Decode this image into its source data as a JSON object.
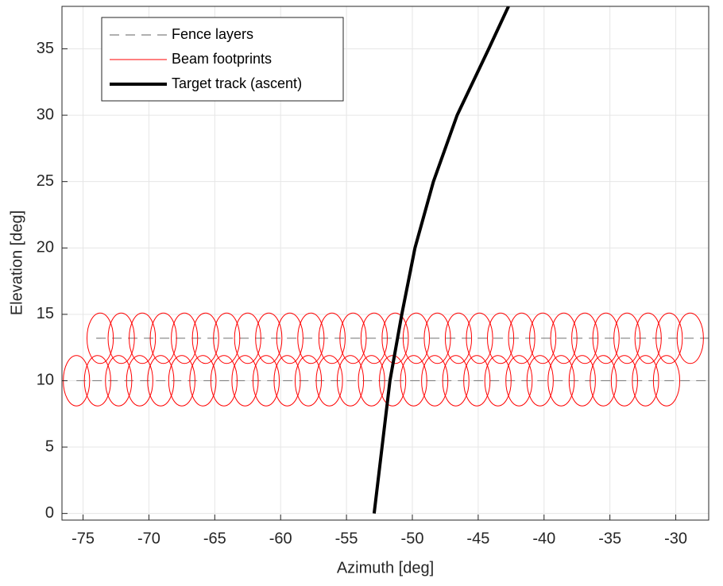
{
  "chart_data": {
    "type": "line",
    "xlabel": "Azimuth [deg]",
    "ylabel": "Elevation [deg]",
    "xlim": [
      -76.6,
      -27.5
    ],
    "ylim": [
      -0.5,
      38.2
    ],
    "xticks": [
      -75,
      -70,
      -65,
      -60,
      -55,
      -50,
      -45,
      -40,
      -35,
      -30
    ],
    "yticks": [
      0,
      5,
      10,
      15,
      20,
      25,
      30,
      35
    ],
    "grid": true,
    "legend": "upper left",
    "series": [
      {
        "name": "Fence layers",
        "color": "#808080",
        "style": "dashed",
        "width": 1.2,
        "x": [
          -75.5,
          -27.5,
          null,
          -74,
          -27.5
        ],
        "y": [
          10,
          10,
          null,
          13.2,
          13.2
        ]
      },
      {
        "name": "Beam footprints",
        "color": "#ff0000",
        "style": "ellipse",
        "width": 1,
        "rx": 1,
        "ry": 1.9,
        "rows": [
          {
            "y": 10,
            "x": [
              -75.5,
              -73.9,
              -72.3,
              -70.7,
              -69.1,
              -67.5,
              -65.9,
              -64.3,
              -62.7,
              -61.1,
              -59.5,
              -57.9,
              -56.3,
              -54.7,
              -53.1,
              -51.5,
              -49.9,
              -48.3,
              -46.7,
              -45.1,
              -43.5,
              -41.9,
              -40.3,
              -38.7,
              -37.1,
              -35.5,
              -33.9,
              -32.3,
              -30.7
            ]
          },
          {
            "y": 13.2,
            "x": [
              -73.7,
              -72.1,
              -70.5,
              -68.9,
              -67.3,
              -65.7,
              -64.1,
              -62.5,
              -60.9,
              -59.3,
              -57.7,
              -56.1,
              -54.5,
              -52.9,
              -51.3,
              -49.7,
              -48.1,
              -46.5,
              -44.9,
              -43.3,
              -41.7,
              -40.1,
              -38.5,
              -36.9,
              -35.3,
              -33.7,
              -32.1,
              -30.5,
              -28.9
            ]
          }
        ]
      },
      {
        "name": "Target track (ascent)",
        "color": "#000000",
        "style": "solid",
        "width": 4,
        "x": [
          -52.9,
          -52.3,
          -51.7,
          -50.8,
          -49.8,
          -48.4,
          -46.6,
          -44.2,
          -42.7
        ],
        "y": [
          0,
          5,
          10,
          15,
          20,
          25,
          30,
          35,
          38.2
        ]
      }
    ]
  }
}
